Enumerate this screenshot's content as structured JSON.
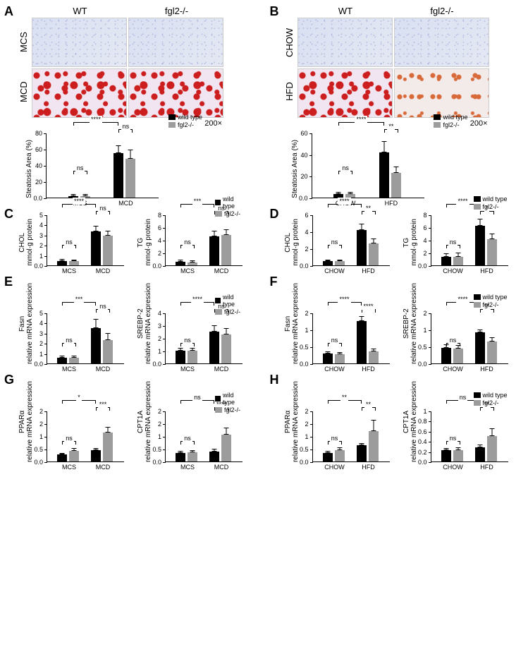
{
  "colors": {
    "wt": "#000000",
    "ko": "#9c9c9c",
    "axis": "#000000"
  },
  "font": {
    "axis_pt": 9,
    "label_pt": 13,
    "panel_pt": 18
  },
  "legend": {
    "wt": "wild type",
    "ko": "fgl2-/-",
    "ko_sp": "fgl2 -/-"
  },
  "genotype_labels": {
    "wt": "WT",
    "ko": "fgl2-/-"
  },
  "magnification": "200×",
  "A": {
    "row_labels": [
      "MCS",
      "MCD"
    ],
    "y": "Steatosis Area (%)",
    "ymax": 80,
    "ytick": 20,
    "categories": [
      "MCS",
      "MCD"
    ],
    "wt": [
      2,
      55
    ],
    "wt_err": [
      2,
      9
    ],
    "ko": [
      2,
      48
    ],
    "ko_err": [
      2,
      11
    ],
    "sig_outer": "****",
    "sig_left": "ns",
    "sig_right": "ns"
  },
  "B": {
    "row_labels": [
      "CHOW",
      "HFD"
    ],
    "y": "Steatosis Area (%)",
    "ymax": 60,
    "ytick": 20,
    "categories": [
      "CHOW",
      "HFD"
    ],
    "wt": [
      3,
      42
    ],
    "wt_err": [
      2,
      10
    ],
    "ko": [
      3,
      23
    ],
    "ko_err": [
      2,
      6
    ],
    "sig_outer": "****",
    "sig_left": "ns",
    "sig_right": "**"
  },
  "C": {
    "chol": {
      "y": "CHOL\nmmol·g protein",
      "ymax": 5,
      "ytick": 1,
      "categories": [
        "MCS",
        "MCD"
      ],
      "wt": [
        0.45,
        3.35
      ],
      "wt_err": [
        0.15,
        0.55
      ],
      "ko": [
        0.4,
        2.9
      ],
      "ko_err": [
        0.18,
        0.5
      ],
      "sig_outer": "****",
      "sig_left": "ns",
      "sig_right": "ns"
    },
    "tg": {
      "y": "TG\nmmol·g protein",
      "ymax": 8,
      "ytick": 2,
      "categories": [
        "MCS",
        "MCD"
      ],
      "wt": [
        0.6,
        4.6
      ],
      "wt_err": [
        0.3,
        0.9
      ],
      "ko": [
        0.5,
        4.8
      ],
      "ko_err": [
        0.3,
        0.9
      ],
      "sig_outer": "***",
      "sig_left": "ns",
      "sig_right": "ns"
    }
  },
  "D": {
    "chol": {
      "y": "CHOL\nmmol·g protein",
      "ymax": 6,
      "ytick": 2,
      "categories": [
        "CHOW",
        "HFD"
      ],
      "wt": [
        0.5,
        4.2
      ],
      "wt_err": [
        0.15,
        0.7
      ],
      "ko": [
        0.5,
        2.6
      ],
      "ko_err": [
        0.15,
        0.6
      ],
      "sig_outer": "****",
      "sig_left": "ns",
      "sig_right": "**"
    },
    "tg": {
      "y": "TG\nmmol·g protein",
      "ymax": 8,
      "ytick": 2,
      "categories": [
        "CHOW",
        "HFD"
      ],
      "wt": [
        1.3,
        6.2
      ],
      "wt_err": [
        0.6,
        1.1
      ],
      "ko": [
        1.3,
        4.1
      ],
      "ko_err": [
        0.7,
        0.9
      ],
      "sig_outer": "****",
      "sig_left": "ns",
      "sig_right": "*"
    }
  },
  "E": {
    "fasn": {
      "y": "Fasn\nrelative mRNA expression",
      "ymax": 5,
      "ytick": 1,
      "categories": [
        "MCS",
        "MCD"
      ],
      "wt": [
        0.55,
        3.5
      ],
      "wt_err": [
        0.25,
        0.9
      ],
      "ko": [
        0.55,
        2.3
      ],
      "ko_err": [
        0.25,
        0.7
      ],
      "sig_outer": "***",
      "sig_left": "ns",
      "sig_right": "ns"
    },
    "srebp2": {
      "y": "SREBP-2\nrelative mRNA expression",
      "ymax": 4,
      "ytick": 1,
      "categories": [
        "MCS",
        "MCD"
      ],
      "wt": [
        1.0,
        2.5
      ],
      "wt_err": [
        0.2,
        0.5
      ],
      "ko": [
        1.0,
        2.3
      ],
      "ko_err": [
        0.2,
        0.5
      ],
      "sig_outer": "****",
      "sig_left": "ns",
      "sig_right": "ns"
    }
  },
  "F": {
    "fasn": {
      "y": "Fasn\nrelative mRNA expression",
      "ymax": 1.5,
      "ytick": 0.5,
      "categories": [
        "CHOW",
        "HFD"
      ],
      "wt": [
        0.3,
        1.25
      ],
      "wt_err": [
        0.05,
        0.15
      ],
      "ko": [
        0.27,
        0.35
      ],
      "ko_err": [
        0.06,
        0.08
      ],
      "sig_outer": "****",
      "sig_left": "ns",
      "sig_right": "****"
    },
    "srebp2": {
      "y": "SREBP-2\nrelative mRNA expression",
      "ymax": 1.5,
      "ytick": 0.5,
      "categories": [
        "CHOW",
        "HFD"
      ],
      "wt": [
        0.47,
        0.92
      ],
      "wt_err": [
        0.1,
        0.09
      ],
      "ko": [
        0.44,
        0.65
      ],
      "ko_err": [
        0.1,
        0.12
      ],
      "sig_outer": "****",
      "sig_left": "ns",
      "sig_right": "**"
    }
  },
  "G": {
    "ppara": {
      "y": "PPARα\nrelative mRNA expression",
      "ymax": 2.0,
      "ytick": 0.5,
      "categories": [
        "MCS",
        "MCD"
      ],
      "wt": [
        0.28,
        0.44
      ],
      "wt_err": [
        0.05,
        0.1
      ],
      "ko": [
        0.42,
        1.15
      ],
      "ko_err": [
        0.1,
        0.22
      ],
      "sig_outer": "*",
      "sig_left": "ns",
      "sig_right": "***"
    },
    "cpt1a": {
      "y": "CPT1A\nrelative mRNA expression",
      "ymax": 2.0,
      "ytick": 0.5,
      "categories": [
        "MCS",
        "MCD"
      ],
      "wt": [
        0.35,
        0.4
      ],
      "wt_err": [
        0.08,
        0.1
      ],
      "ko": [
        0.36,
        1.05
      ],
      "ko_err": [
        0.09,
        0.28
      ],
      "sig_outer": "ns",
      "sig_left": "ns",
      "sig_right": "****"
    }
  },
  "H": {
    "ppara": {
      "y": "PPARα\nrelative mRNA expression",
      "ymax": 2.0,
      "ytick": 0.5,
      "categories": [
        "CHOW",
        "HFD"
      ],
      "wt": [
        0.35,
        0.65
      ],
      "wt_err": [
        0.06,
        0.08
      ],
      "ko": [
        0.45,
        1.2
      ],
      "ko_err": [
        0.1,
        0.45
      ],
      "sig_outer": "**",
      "sig_left": "ns",
      "sig_right": "**"
    },
    "cpt1a": {
      "y": "CPT1A\nrelative mRNA expression",
      "ymax": 1.0,
      "ytick": 0.2,
      "categories": [
        "CHOW",
        "HFD"
      ],
      "wt": [
        0.22,
        0.28
      ],
      "wt_err": [
        0.05,
        0.06
      ],
      "ko": [
        0.22,
        0.5
      ],
      "ko_err": [
        0.06,
        0.16
      ],
      "sig_outer": "ns",
      "sig_left": "ns",
      "sig_right": "**"
    }
  }
}
